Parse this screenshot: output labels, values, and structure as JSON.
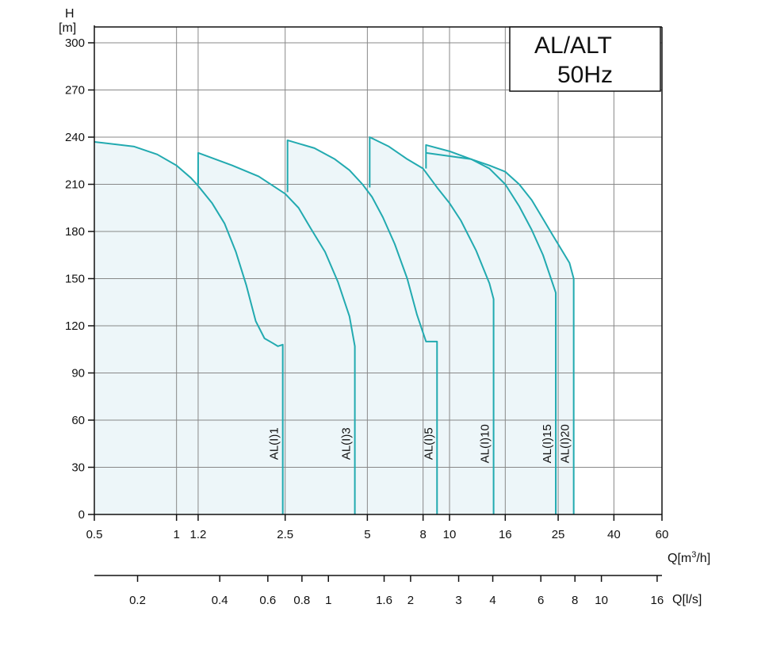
{
  "chart_data": {
    "type": "line",
    "title": "AL/ALT",
    "subtitle": "50Hz",
    "y_axis": {
      "label_top": "H",
      "label_unit": "[m]",
      "ticks": [
        "0",
        "30",
        "60",
        "90",
        "120",
        "150",
        "180",
        "210",
        "240",
        "270",
        "300"
      ],
      "range": [
        0,
        300
      ]
    },
    "x_axis": {
      "label": "Q[m³/h]",
      "label_main": "Q[m",
      "label_sup": "3",
      "label_end": "/h]",
      "scale": "log",
      "range": [
        0.5,
        60
      ],
      "ticks": [
        "0.5",
        "1",
        "1.2",
        "2.5",
        "5",
        "8",
        "10",
        "16",
        "25",
        "40",
        "60"
      ]
    },
    "x_axis_2": {
      "label": "Q[l/s]",
      "scale": "log",
      "ticks": [
        "0.2",
        "0.4",
        "0.6",
        "0.8",
        "1",
        "1.6",
        "2",
        "3",
        "4",
        "6",
        "8",
        "10",
        "16"
      ]
    },
    "grid": true,
    "colors": {
      "curve": "#22aab0",
      "fill": "#edf6f9",
      "grid": "#888888"
    },
    "series": [
      {
        "name": "AL(I)1",
        "x": [
          0.5,
          0.7,
          0.85,
          1.0,
          1.13,
          1.2,
          1.35,
          1.5,
          1.65,
          1.8,
          1.95,
          2.1,
          2.25,
          2.35,
          2.45,
          2.45
        ],
        "y": [
          237,
          234,
          229,
          222,
          214,
          209,
          198,
          185,
          167,
          146,
          123,
          112,
          109,
          107,
          108,
          0
        ]
      },
      {
        "name": "AL(I)3",
        "x": [
          1.2,
          1.2,
          1.6,
          2.0,
          2.5,
          2.8,
          3.1,
          3.5,
          3.9,
          4.3,
          4.5,
          4.5
        ],
        "y": [
          210,
          230,
          222,
          215,
          204,
          195,
          182,
          167,
          148,
          126,
          107,
          0
        ]
      },
      {
        "name": "AL(I)5",
        "x": [
          2.55,
          2.55,
          3.2,
          3.8,
          4.3,
          4.8,
          5.2,
          5.7,
          6.3,
          7.0,
          7.6,
          8.2,
          9.0,
          9.0
        ],
        "y": [
          205,
          238,
          233,
          226,
          219,
          210,
          202,
          189,
          172,
          150,
          127,
          110,
          110,
          0
        ]
      },
      {
        "name": "AL(I)10",
        "x": [
          5.1,
          5.1,
          6.0,
          7.0,
          8.0,
          9.0,
          10.0,
          11.0,
          12.5,
          14.0,
          14.5,
          14.5
        ],
        "y": [
          208,
          240,
          234,
          226,
          220,
          208,
          198,
          187,
          168,
          147,
          137,
          0
        ]
      },
      {
        "name": "AL(I)15",
        "x": [
          8.2,
          8.2,
          10.0,
          12.0,
          14.0,
          16.0,
          18.0,
          20.0,
          22.0,
          24.5,
          24.5
        ],
        "y": [
          220,
          235,
          231,
          226,
          220,
          210,
          196,
          181,
          165,
          141,
          0
        ]
      },
      {
        "name": "AL(I)20",
        "x": [
          8.2,
          12.0,
          14.0,
          16.0,
          18.0,
          20.0,
          22.0,
          24.0,
          26.0,
          27.5,
          28.5,
          28.5
        ],
        "y": [
          230,
          226,
          222,
          218,
          210,
          200,
          188,
          177,
          167,
          160,
          150,
          0
        ]
      }
    ]
  }
}
